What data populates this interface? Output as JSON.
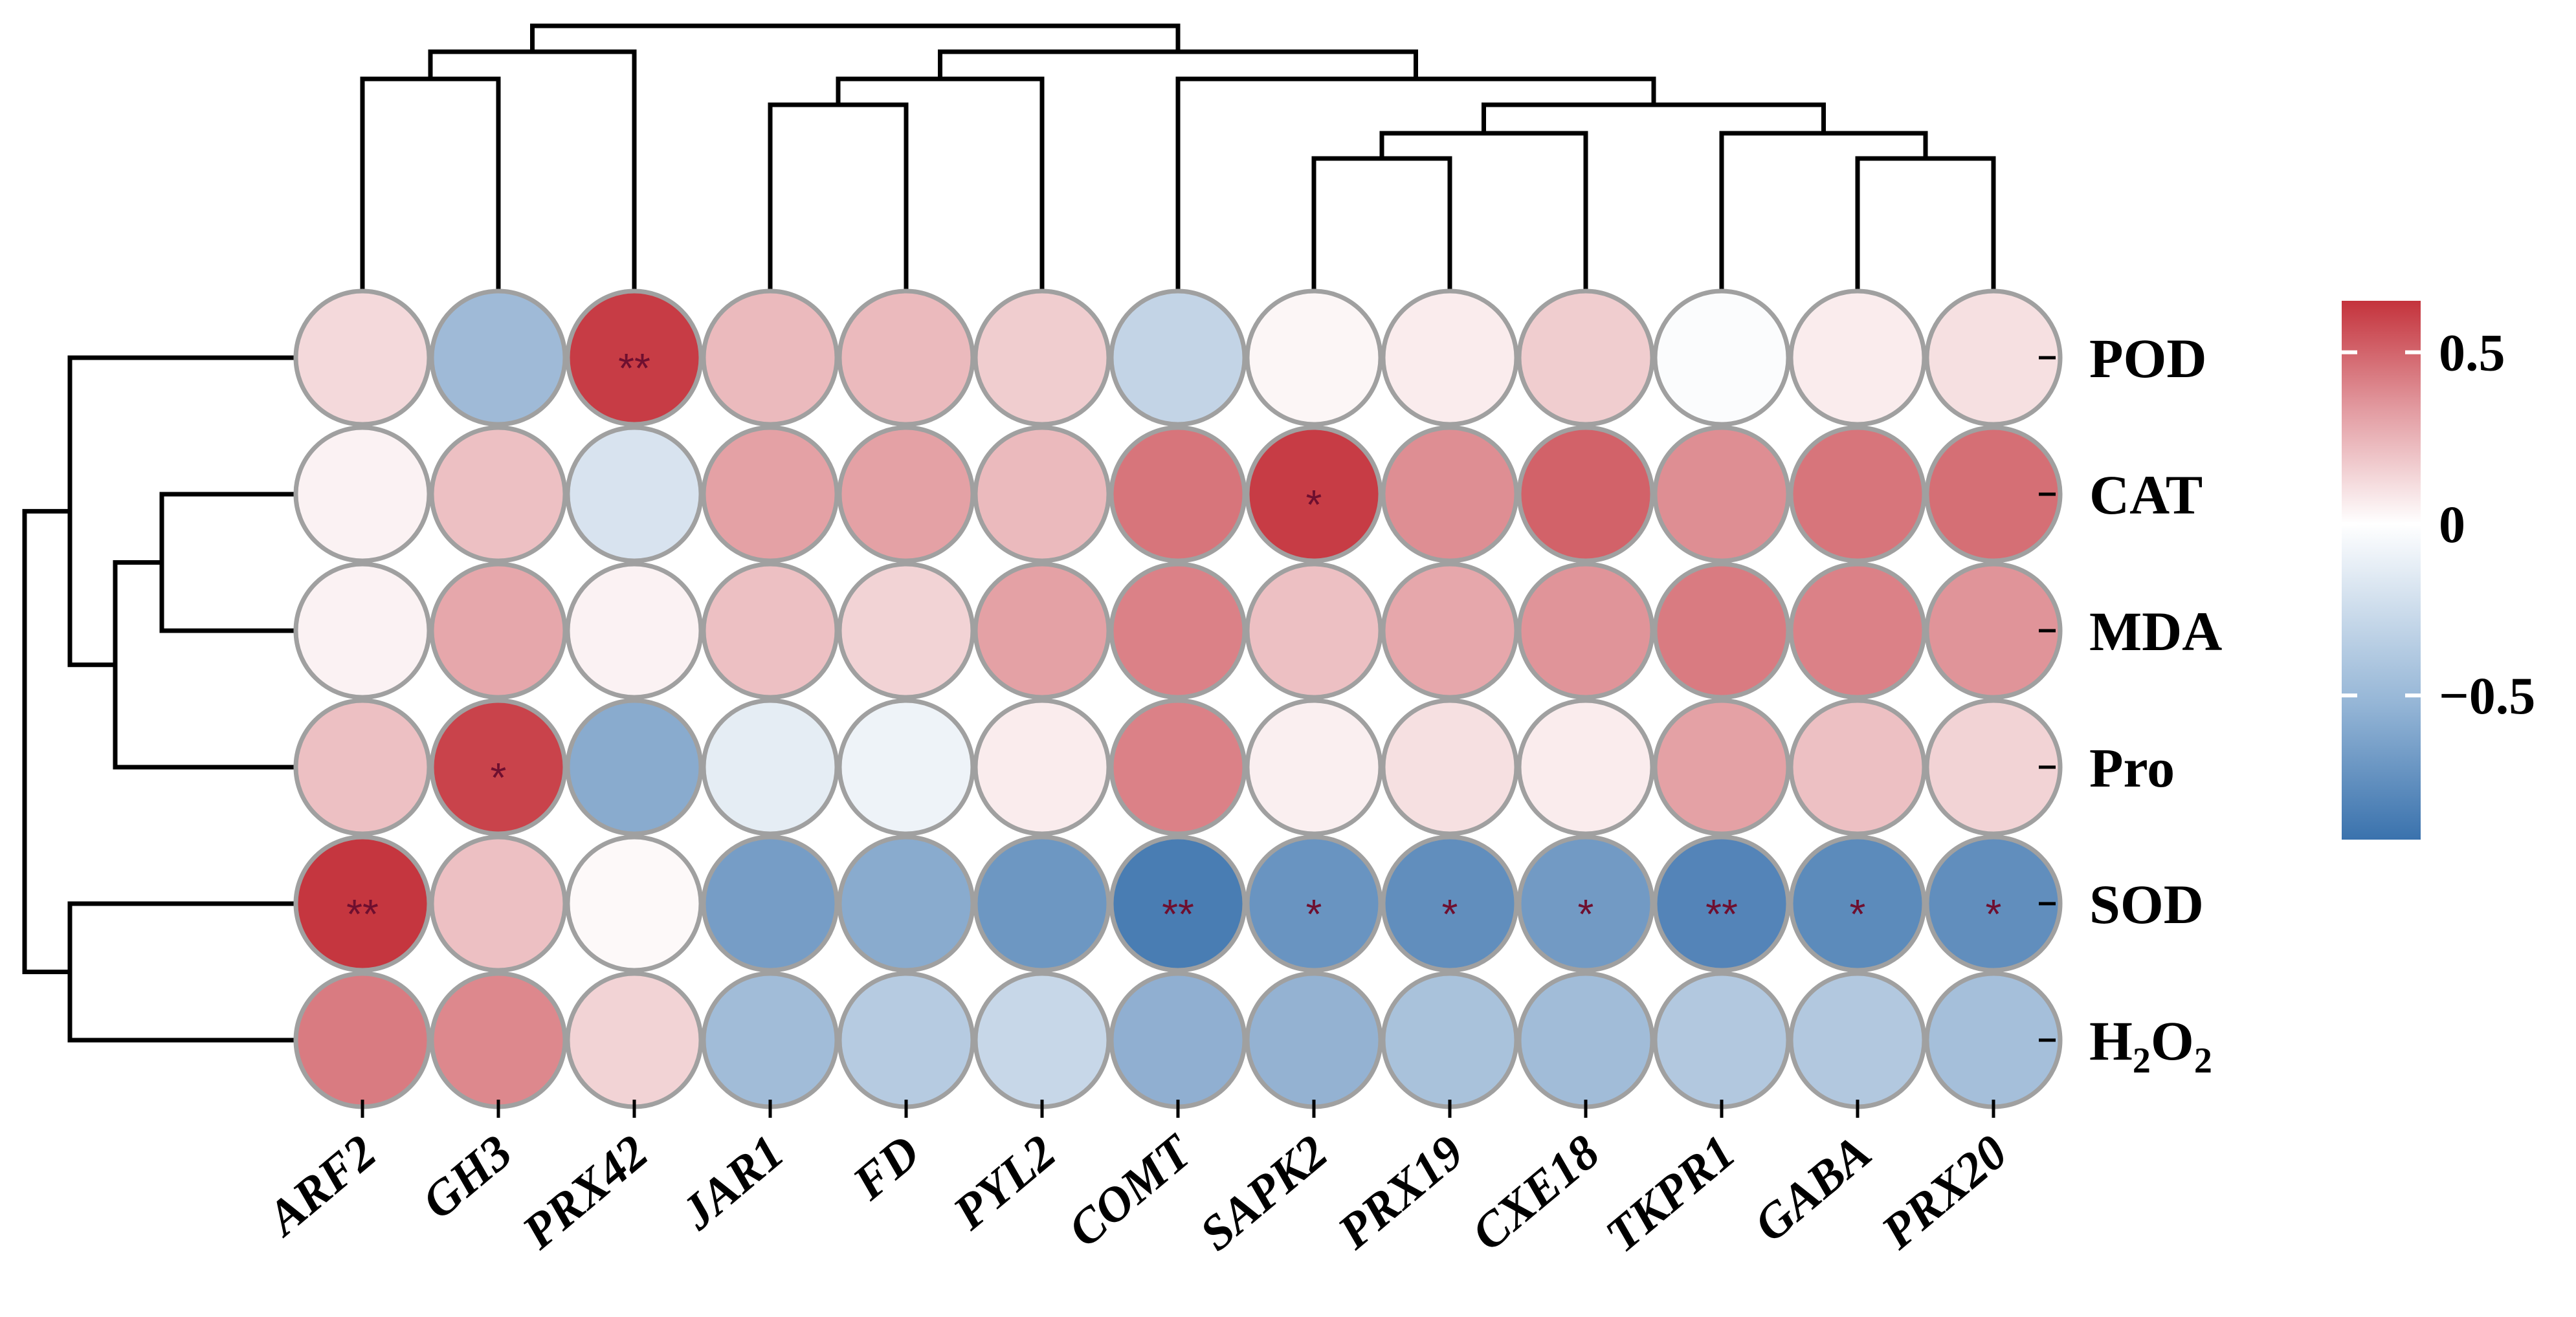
{
  "chart_data": {
    "type": "heatmap",
    "title": "",
    "xlabel": "",
    "ylabel": "",
    "columns": [
      "ARF2",
      "GH3",
      "PRX42",
      "JAR1",
      "FD",
      "PYL2",
      "COMT",
      "SAPK2",
      "PRX19",
      "CXE18",
      "TKPR1",
      "GABA",
      "PRX20"
    ],
    "rows": [
      "POD",
      "CAT",
      "MDA",
      "Pro",
      "SOD",
      "H2O2"
    ],
    "row_labels_display": [
      {
        "main": "POD"
      },
      {
        "main": "CAT"
      },
      {
        "main": "MDA"
      },
      {
        "main": "Pro"
      },
      {
        "main": "SOD"
      },
      {
        "parts": [
          {
            "t": "H",
            "sub": false
          },
          {
            "t": "2",
            "sub": true
          },
          {
            "t": "O",
            "sub": false
          },
          {
            "t": "2",
            "sub": true
          }
        ]
      }
    ],
    "values": [
      [
        0.12,
        -0.45,
        0.62,
        0.22,
        0.22,
        0.16,
        -0.28,
        0.03,
        0.06,
        0.16,
        -0.02,
        0.06,
        0.1
      ],
      [
        0.04,
        0.2,
        -0.18,
        0.3,
        0.3,
        0.22,
        0.44,
        0.62,
        0.36,
        0.5,
        0.36,
        0.44,
        0.46
      ],
      [
        0.04,
        0.28,
        0.04,
        0.2,
        0.14,
        0.3,
        0.4,
        0.2,
        0.28,
        0.34,
        0.42,
        0.4,
        0.34
      ],
      [
        0.2,
        0.6,
        -0.55,
        -0.12,
        -0.08,
        0.06,
        0.4,
        0.05,
        0.1,
        0.06,
        0.3,
        0.2,
        0.14
      ],
      [
        0.64,
        0.2,
        0.02,
        -0.64,
        -0.55,
        -0.68,
        -0.85,
        -0.7,
        -0.74,
        -0.66,
        -0.8,
        -0.76,
        -0.74
      ],
      [
        0.42,
        0.38,
        0.14,
        -0.44,
        -0.34,
        -0.26,
        -0.52,
        -0.5,
        -0.4,
        -0.44,
        -0.36,
        -0.36,
        -0.42
      ]
    ],
    "significance": [
      [
        "",
        "",
        "**",
        "",
        "",
        "",
        "",
        "",
        "",
        "",
        "",
        "",
        ""
      ],
      [
        "",
        "",
        "",
        "",
        "",
        "",
        "",
        "*",
        "",
        "",
        "",
        "",
        ""
      ],
      [
        "",
        "",
        "",
        "",
        "",
        "",
        "",
        "",
        "",
        "",
        "",
        "",
        ""
      ],
      [
        "",
        "*",
        "",
        "",
        "",
        "",
        "",
        "",
        "",
        "",
        "",
        "",
        ""
      ],
      [
        "**",
        "",
        "",
        "",
        "",
        "",
        "**",
        "*",
        "*",
        "*",
        "**",
        "*",
        "*"
      ],
      [
        "",
        "",
        "",
        "",
        "",
        "",
        "",
        "",
        "",
        "",
        "",
        "",
        ""
      ]
    ],
    "colorbar": {
      "min": -0.92,
      "max": 0.65,
      "ticks": [
        0.5,
        0,
        -0.5
      ],
      "tick_labels": [
        "0.5",
        "0",
        "−0.5"
      ],
      "colors": {
        "low": "#3a72ad",
        "mid": "#ffffff",
        "high": "#c4333c"
      }
    },
    "column_dendrogram": [
      [
        "ARF2",
        "GH3"
      ],
      [
        "ARF2+GH3",
        "PRX42"
      ],
      [
        "JAR1",
        "FD"
      ],
      [
        "JAR1+FD",
        "PYL2"
      ],
      [
        "SAPK2",
        "PRX19"
      ],
      [
        "SAPK2+PRX19",
        "CXE18"
      ],
      [
        "GABA",
        "PRX20"
      ],
      [
        "TKPR1",
        "GABA+PRX20"
      ],
      [
        "SAPK2+PRX19+CXE18",
        "TKPR1+GABA+PRX20"
      ],
      [
        "COMT",
        "rest"
      ],
      [
        "JAR1+FD+PYL2",
        "COMT+rest"
      ],
      [
        "ARF2+GH3+PRX42",
        "JAR1..PRX20"
      ]
    ],
    "row_dendrogram": [
      [
        "CAT",
        "MDA"
      ],
      [
        "CAT+MDA",
        "Pro"
      ],
      [
        "POD",
        "CAT+MDA+Pro"
      ],
      [
        "SOD",
        "H2O2"
      ],
      [
        "POD..Pro",
        "SOD+H2O2"
      ]
    ],
    "cell_border_color": "#a0a0a0",
    "dendrogram_color": "#000000"
  }
}
